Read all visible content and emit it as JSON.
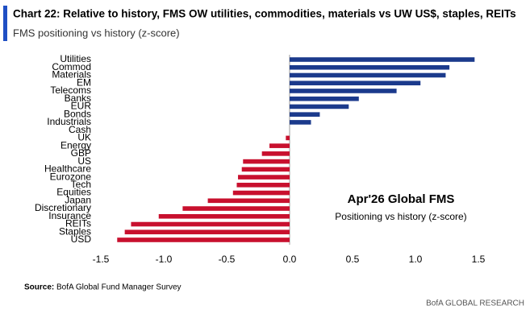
{
  "chart_data": {
    "type": "bar",
    "orientation": "horizontal",
    "title": "Chart 22: Relative to history, FMS OW utilities, commodities, materials vs UW US$, staples, REITs",
    "subtitle": "FMS positioning vs history (z-score)",
    "annotation_title": "Apr'26 Global FMS",
    "annotation_subtitle": "Positioning vs history (z-score)",
    "source_label": "Source:",
    "source": "BofA Global Fund Manager Survey",
    "footer": "BofA GLOBAL RESEARCH",
    "categories": [
      "Utilities",
      "Commod",
      "Materials",
      "EM",
      "Telecoms",
      "Banks",
      "EUR",
      "Bonds",
      "Industrials",
      "Cash",
      "UK",
      "Energy",
      "GBP",
      "US",
      "Healthcare",
      "Eurozone",
      "Tech",
      "Equities",
      "Japan",
      "Discretionary",
      "Insurance",
      "REITs",
      "Staples",
      "USD"
    ],
    "values": [
      1.47,
      1.27,
      1.24,
      1.04,
      0.85,
      0.55,
      0.47,
      0.24,
      0.17,
      0.0,
      -0.03,
      -0.16,
      -0.22,
      -0.37,
      -0.38,
      -0.41,
      -0.42,
      -0.45,
      -0.65,
      -0.85,
      -1.04,
      -1.26,
      -1.31,
      -1.37
    ],
    "positive_color": "#1b3a8c",
    "negative_color": "#c8102e",
    "xlim": [
      -1.5,
      1.5
    ],
    "xticks": [
      -1.5,
      {
        "value": -1,
        "label": "-1.0"
      },
      -0.5,
      {
        "value": 0,
        "label": "0.0"
      },
      0.5,
      {
        "value": 1,
        "label": "1.0"
      },
      1.5
    ]
  }
}
